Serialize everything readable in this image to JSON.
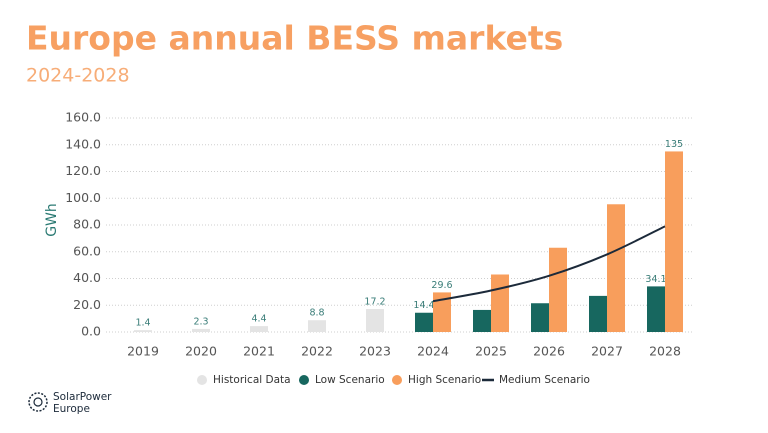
{
  "chart_data": {
    "type": "bar",
    "title": "Europe annual BESS markets",
    "subtitle": "2024-2028",
    "y_label": "GWh",
    "categories": [
      "2019",
      "2020",
      "2021",
      "2022",
      "2023",
      "2024",
      "2025",
      "2026",
      "2027",
      "2028"
    ],
    "series": [
      {
        "name": "Historical Data",
        "type": "bar",
        "color": "#e4e4e4",
        "values": [
          1.4,
          2.3,
          4.4,
          8.8,
          17.2,
          null,
          null,
          null,
          null,
          null
        ],
        "value_labels": [
          "1.4",
          "2.3",
          "4.4",
          "8.8",
          "17.2",
          null,
          null,
          null,
          null,
          null
        ]
      },
      {
        "name": "Low Scenario",
        "type": "bar",
        "color": "#17675f",
        "values": [
          null,
          null,
          null,
          null,
          null,
          14.4,
          16.5,
          21.5,
          27,
          34.1
        ],
        "value_labels": [
          null,
          null,
          null,
          null,
          null,
          "14.4",
          null,
          null,
          null,
          "34.1"
        ]
      },
      {
        "name": "High Scenario",
        "type": "bar",
        "color": "#f89e5c",
        "values": [
          null,
          null,
          null,
          null,
          null,
          29.6,
          43,
          63,
          95.5,
          135
        ],
        "value_labels": [
          null,
          null,
          null,
          null,
          null,
          "29.6",
          null,
          null,
          null,
          "135"
        ]
      },
      {
        "name": "Medium Scenario",
        "type": "line",
        "color": "#1c2a3a",
        "values": [
          null,
          null,
          null,
          null,
          null,
          23,
          31,
          42,
          58,
          79
        ]
      }
    ],
    "ylim": [
      0,
      160
    ],
    "yticks": [
      {
        "value": 0,
        "label": "0.0"
      },
      {
        "value": 20,
        "label": "20.0"
      },
      {
        "value": 40,
        "label": "40.0"
      },
      {
        "value": 60,
        "label": "60.0"
      },
      {
        "value": 80,
        "label": "80.0"
      },
      {
        "value": 100,
        "label": "100.0"
      },
      {
        "value": 120,
        "label": "120.0"
      },
      {
        "value": 140,
        "label": "140.0"
      },
      {
        "value": 160,
        "label": "160.0"
      }
    ],
    "grid": true
  },
  "logo": [
    "SolarPower",
    "Europe"
  ]
}
